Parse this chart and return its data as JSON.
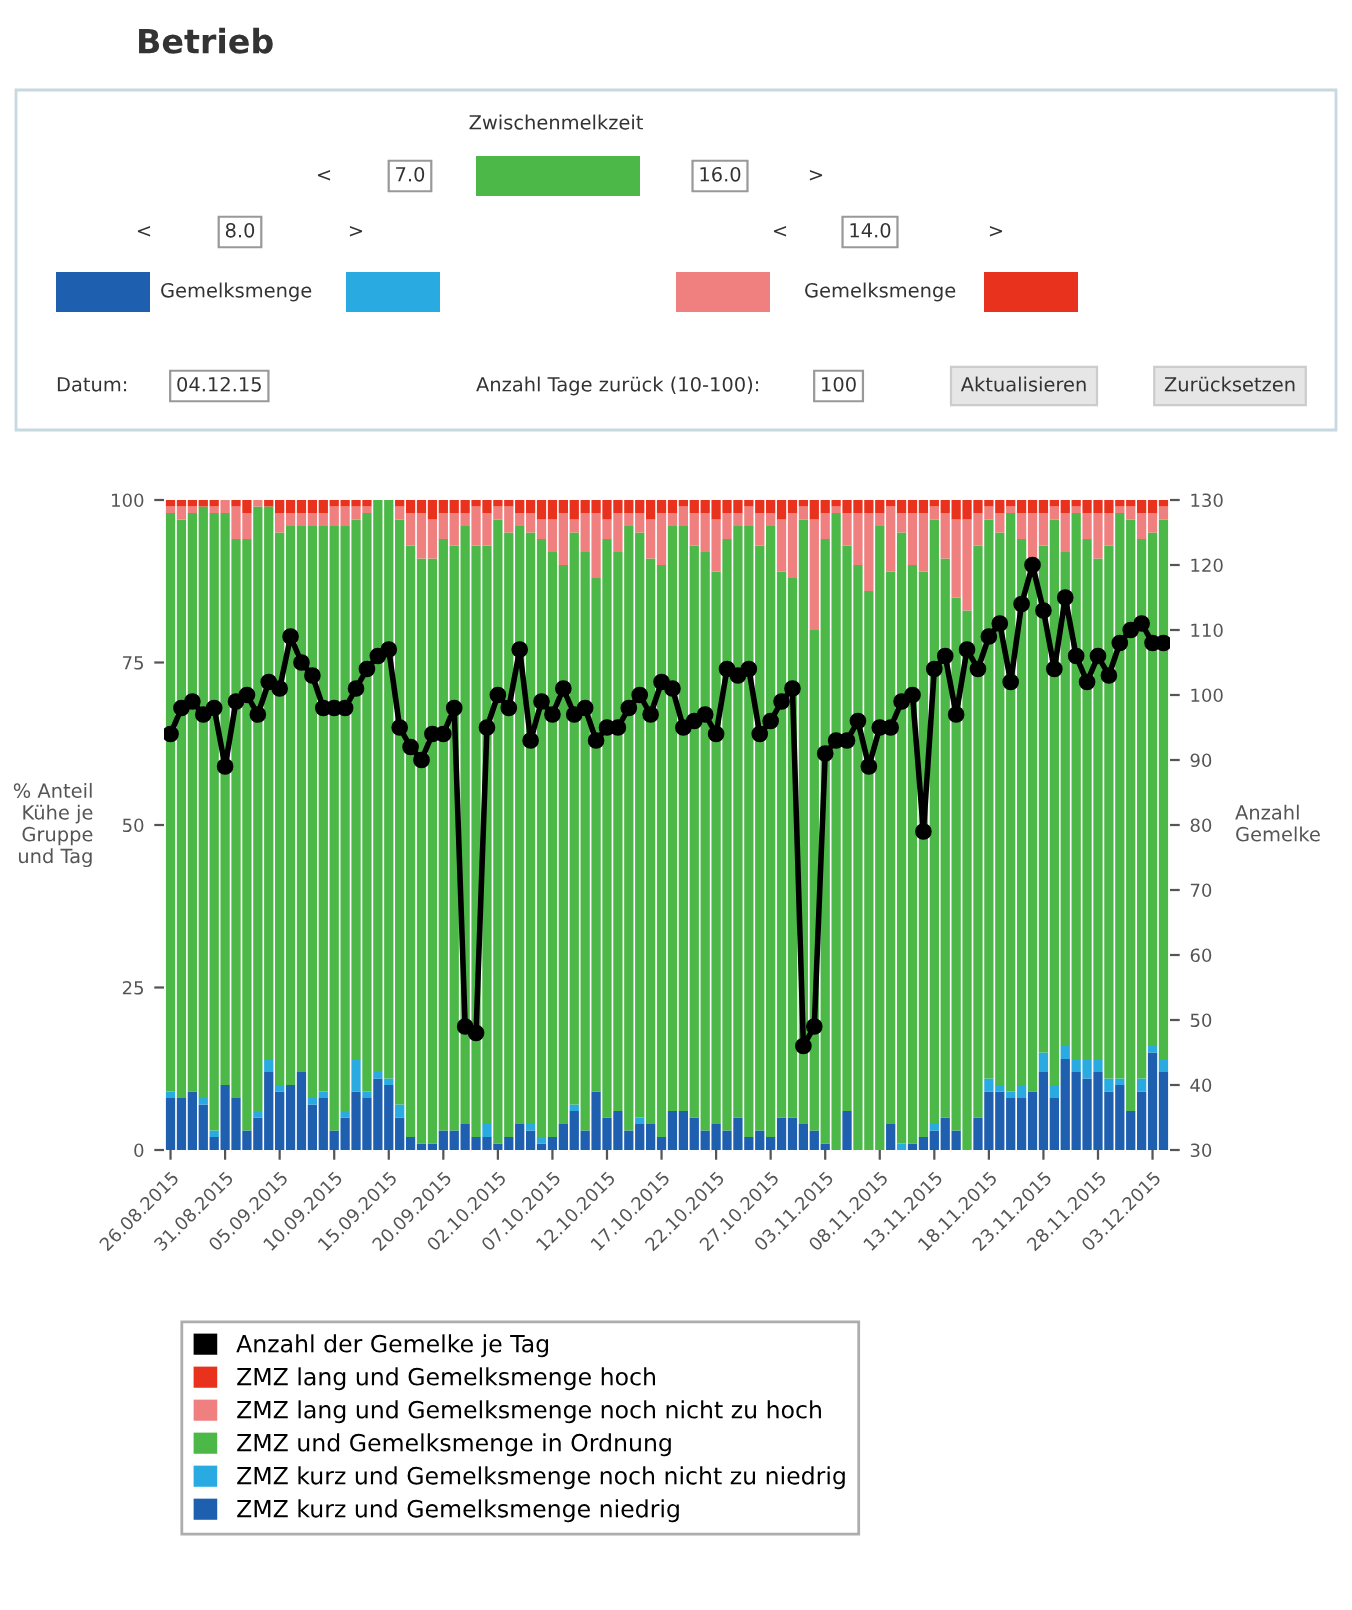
{
  "chart_data": {
    "type": "bar",
    "stacked": true,
    "ylabel": "% Anteil\nKühe je\nGruppe\nund Tag",
    "y2label": "Anzahl\nGemelke",
    "annotations": [
      "Betrieb",
      "Zwischenmelkzeit",
      "<",
      "7.0",
      "16.0",
      ">",
      "<",
      "8.0",
      ">",
      "<",
      "14.0",
      ">",
      "Gemelksmenge",
      "Gemelksmenge",
      "Datum:",
      "04.12.15",
      "Anzahl Tage zurück (10-100):",
      "100",
      "Aktualisieren",
      "Zurücksetzen"
    ],
    "categories": [
      "26.08.2015",
      null,
      null,
      null,
      null,
      "31.08.2015",
      null,
      null,
      null,
      null,
      "05.09.2015",
      null,
      null,
      null,
      null,
      "10.09.2015",
      null,
      null,
      null,
      null,
      "15.09.2015",
      null,
      null,
      null,
      null,
      "20.09.2015",
      null,
      null,
      null,
      null,
      "02.10.2015",
      null,
      null,
      null,
      null,
      "07.10.2015",
      null,
      null,
      null,
      null,
      "12.10.2015",
      null,
      null,
      null,
      null,
      "17.10.2015",
      null,
      null,
      null,
      null,
      "22.10.2015",
      null,
      null,
      null,
      null,
      "27.10.2015",
      null,
      null,
      null,
      null,
      "03.11.2015",
      null,
      null,
      null,
      null,
      "08.11.2015",
      null,
      null,
      null,
      null,
      "13.11.2015",
      null,
      null,
      null,
      null,
      "18.11.2015",
      null,
      null,
      null,
      null,
      "23.11.2015",
      null,
      null,
      null,
      null,
      "28.11.2015",
      null,
      null,
      null,
      null,
      "03.12.2015",
      null
    ],
    "ylim": [
      0,
      100
    ],
    "yticks": [
      0,
      25,
      50,
      75,
      100
    ],
    "y2lim": [
      30,
      130
    ],
    "y2ticks": [
      30,
      40,
      50,
      60,
      70,
      80,
      90,
      100,
      110,
      120,
      130
    ],
    "legend": "bottom",
    "series": [
      {
        "name": "ZMZ kurz und Gemelksmenge niedrig",
        "color": "#1f5fb0",
        "values": [
          8,
          8,
          9,
          7,
          2,
          10,
          8,
          3,
          5,
          12,
          9,
          10,
          12,
          7,
          8,
          3,
          5,
          9,
          8,
          11,
          10,
          5,
          2,
          1,
          1,
          3,
          3,
          4,
          2,
          2,
          1,
          2,
          4,
          3,
          1,
          2,
          4,
          6,
          3,
          9,
          5,
          6,
          3,
          4,
          4,
          2,
          6,
          6,
          5,
          3,
          4,
          3,
          5,
          2,
          3,
          2,
          5,
          5,
          4,
          3,
          1,
          0,
          6,
          0,
          0,
          0,
          4,
          0,
          1,
          2,
          3,
          5,
          3,
          0,
          5,
          9,
          9,
          8,
          8,
          9,
          12,
          8,
          14,
          12,
          11,
          12,
          9,
          10,
          6,
          9,
          15,
          12
        ]
      },
      {
        "name": "ZMZ kurz und Gemelksmenge noch nicht zu niedrig",
        "color": "#29aae1",
        "values": [
          1,
          0,
          0,
          1,
          1,
          0,
          0,
          0,
          1,
          2,
          1,
          0,
          0,
          1,
          1,
          0,
          1,
          5,
          1,
          1,
          1,
          2,
          0,
          0,
          0,
          0,
          0,
          0,
          0,
          2,
          0,
          0,
          0,
          1,
          1,
          0,
          0,
          1,
          0,
          0,
          0,
          0,
          0,
          1,
          0,
          0,
          0,
          0,
          0,
          0,
          0,
          0,
          0,
          0,
          0,
          0,
          0,
          0,
          0,
          0,
          0,
          0,
          0,
          0,
          0,
          0,
          0,
          1,
          0,
          0,
          1,
          0,
          0,
          0,
          0,
          2,
          1,
          1,
          2,
          0,
          3,
          2,
          2,
          2,
          3,
          2,
          2,
          1,
          0,
          2,
          1,
          2
        ]
      },
      {
        "name": "ZMZ und Gemelksmenge in Ordnung",
        "color": "#4cb847",
        "values": [
          89,
          89,
          89,
          91,
          95,
          88,
          86,
          91,
          93,
          85,
          85,
          86,
          84,
          88,
          87,
          93,
          90,
          83,
          89,
          88,
          89,
          90,
          91,
          90,
          90,
          91,
          90,
          92,
          91,
          89,
          96,
          93,
          92,
          91,
          92,
          90,
          86,
          88,
          89,
          79,
          89,
          86,
          93,
          90,
          87,
          88,
          90,
          90,
          88,
          89,
          85,
          91,
          91,
          94,
          90,
          94,
          84,
          83,
          93,
          77,
          93,
          98,
          87,
          90,
          86,
          96,
          85,
          94,
          89,
          87,
          93,
          86,
          82,
          83,
          88,
          86,
          85,
          89,
          84,
          81,
          78,
          87,
          76,
          84,
          80,
          77,
          82,
          87,
          91,
          83,
          79,
          83
        ]
      },
      {
        "name": "ZMZ lang und Gemelksmenge noch nicht zu hoch",
        "color": "#f08080",
        "values": [
          1,
          2,
          1,
          0,
          1,
          2,
          5,
          4,
          1,
          0,
          3,
          2,
          2,
          2,
          2,
          3,
          3,
          2,
          1,
          0,
          0,
          2,
          5,
          7,
          6,
          4,
          5,
          2,
          6,
          5,
          2,
          4,
          2,
          3,
          3,
          5,
          8,
          2,
          6,
          10,
          3,
          6,
          2,
          3,
          6,
          8,
          2,
          3,
          5,
          6,
          8,
          4,
          2,
          3,
          5,
          2,
          8,
          10,
          2,
          17,
          4,
          1,
          5,
          8,
          12,
          2,
          10,
          3,
          8,
          9,
          2,
          7,
          12,
          14,
          5,
          2,
          3,
          1,
          4,
          8,
          5,
          2,
          6,
          1,
          4,
          7,
          5,
          1,
          2,
          4,
          3,
          2
        ]
      },
      {
        "name": "ZMZ lang und Gemelksmenge hoch",
        "color": "#e8321e",
        "values": [
          1,
          1,
          1,
          1,
          1,
          0,
          1,
          2,
          0,
          1,
          2,
          2,
          2,
          2,
          2,
          1,
          1,
          1,
          1,
          0,
          0,
          1,
          2,
          2,
          3,
          2,
          2,
          2,
          1,
          2,
          1,
          1,
          2,
          2,
          3,
          3,
          2,
          3,
          2,
          2,
          3,
          2,
          2,
          2,
          3,
          2,
          2,
          1,
          2,
          2,
          3,
          2,
          2,
          1,
          2,
          2,
          3,
          2,
          1,
          3,
          2,
          1,
          2,
          2,
          2,
          2,
          1,
          2,
          2,
          2,
          1,
          2,
          3,
          3,
          2,
          1,
          2,
          1,
          2,
          2,
          2,
          1,
          2,
          1,
          2,
          2,
          2,
          1,
          1,
          2,
          2,
          1
        ]
      },
      {
        "name": "Anzahl der Gemelke je Tag",
        "type": "line",
        "axis": "y2",
        "color": "#000000",
        "marker": "circle",
        "values": [
          94,
          98,
          99,
          97,
          98,
          89,
          99,
          100,
          97,
          102,
          101,
          109,
          105,
          103,
          98,
          98,
          98,
          101,
          104,
          106,
          107,
          95,
          92,
          90,
          94,
          94,
          98,
          49,
          48,
          95,
          100,
          98,
          107,
          93,
          99,
          97,
          101,
          97,
          98,
          93,
          95,
          95,
          98,
          100,
          97,
          102,
          101,
          95,
          96,
          97,
          94,
          104,
          103,
          104,
          94,
          96,
          99,
          101,
          46,
          49,
          91,
          93,
          93,
          96,
          89,
          95,
          95,
          99,
          100,
          79,
          104,
          106,
          97,
          107,
          104,
          109,
          111,
          102,
          114,
          120,
          113,
          104,
          115,
          106,
          102,
          106,
          103,
          108,
          110,
          111,
          108,
          108
        ]
      }
    ]
  }
}
